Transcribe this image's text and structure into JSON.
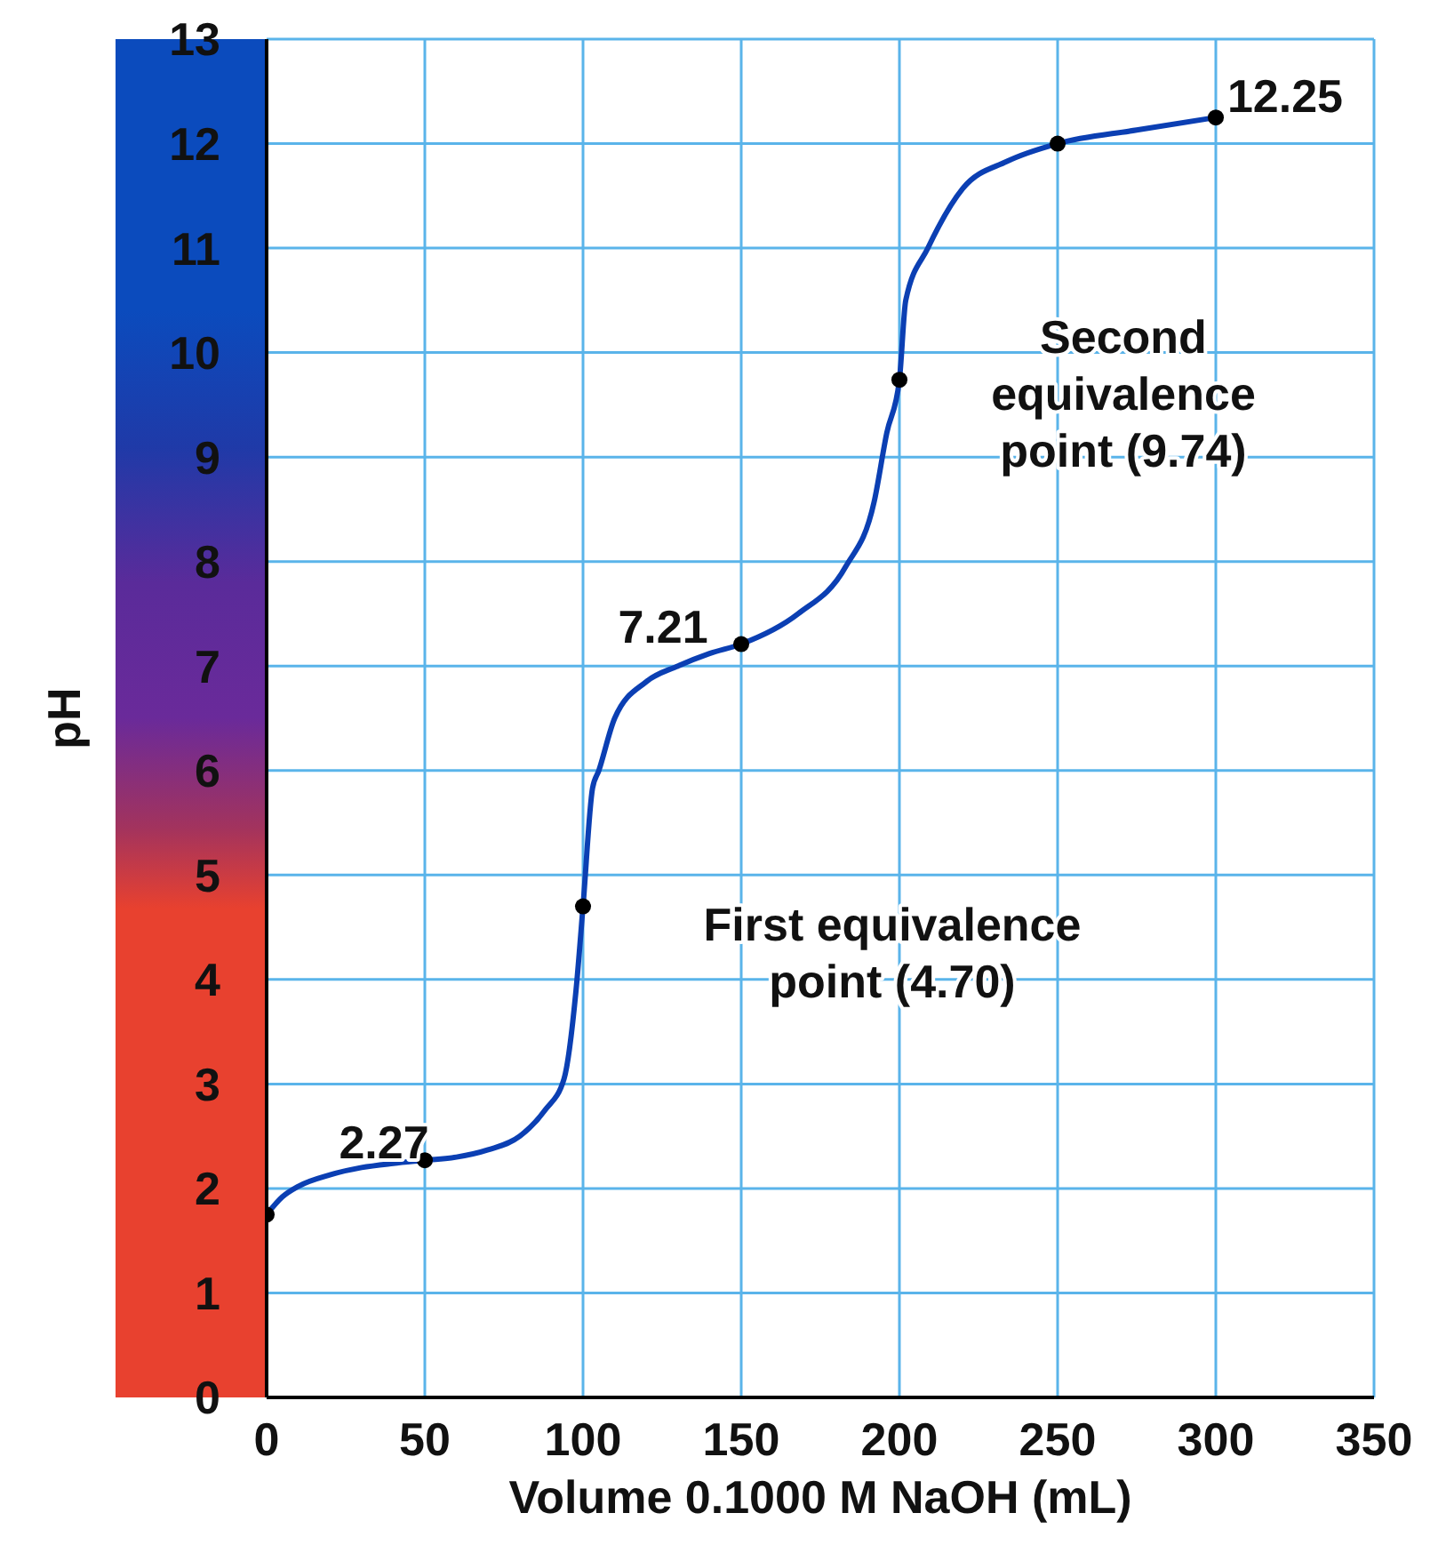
{
  "chart_data": {
    "type": "line",
    "xlabel": "Volume 0.1000 M NaOH (mL)",
    "ylabel": "pH",
    "xlim": [
      0,
      350
    ],
    "xticks": [
      0,
      50,
      100,
      150,
      200,
      250,
      300,
      350
    ],
    "ylim": [
      0,
      13
    ],
    "yticks": [
      0,
      1,
      2,
      3,
      4,
      5,
      6,
      7,
      8,
      9,
      10,
      11,
      12,
      13
    ],
    "grid": true,
    "line_style": "solid",
    "series": [
      {
        "type": "line",
        "color": "#0b3fb3",
        "marker": "none",
        "x": [
          0,
          5,
          10,
          20,
          30,
          40,
          50,
          60,
          70,
          80,
          88,
          94,
          97.8,
          100,
          103,
          105,
          110,
          120,
          130,
          140,
          150,
          168,
          183,
          192,
          196,
          200,
          202,
          209,
          220,
          234,
          250,
          275,
          300
        ],
        "values": [
          1.75,
          1.92,
          2.02,
          2.13,
          2.2,
          2.24,
          2.27,
          2.3,
          2.37,
          2.5,
          2.75,
          3.05,
          3.9,
          4.7,
          5.83,
          6.0,
          6.5,
          6.85,
          7.0,
          7.12,
          7.21,
          7.5,
          7.95,
          8.57,
          9.23,
          9.74,
          10.5,
          11.0,
          11.57,
          11.83,
          12.0,
          12.13,
          12.25
        ]
      },
      {
        "type": "scatter",
        "color": "#000000",
        "marker": "circle",
        "x": [
          0,
          50,
          100,
          150,
          200,
          250,
          300
        ],
        "values": [
          1.75,
          2.27,
          4.7,
          7.21,
          9.74,
          12.0,
          12.25
        ]
      }
    ],
    "annotations": [
      {
        "text": "2.27",
        "x": 50,
        "y": 2.27
      },
      {
        "text": "7.21",
        "x": 150,
        "y": 7.21
      },
      {
        "text": "12.25",
        "x": 300,
        "y": 12.25
      },
      {
        "text": "First equivalence point (4.70)",
        "x": 100,
        "y": 4.7
      },
      {
        "text": "Second equivalence point (9.74)",
        "x": 200,
        "y": 9.74
      }
    ]
  }
}
